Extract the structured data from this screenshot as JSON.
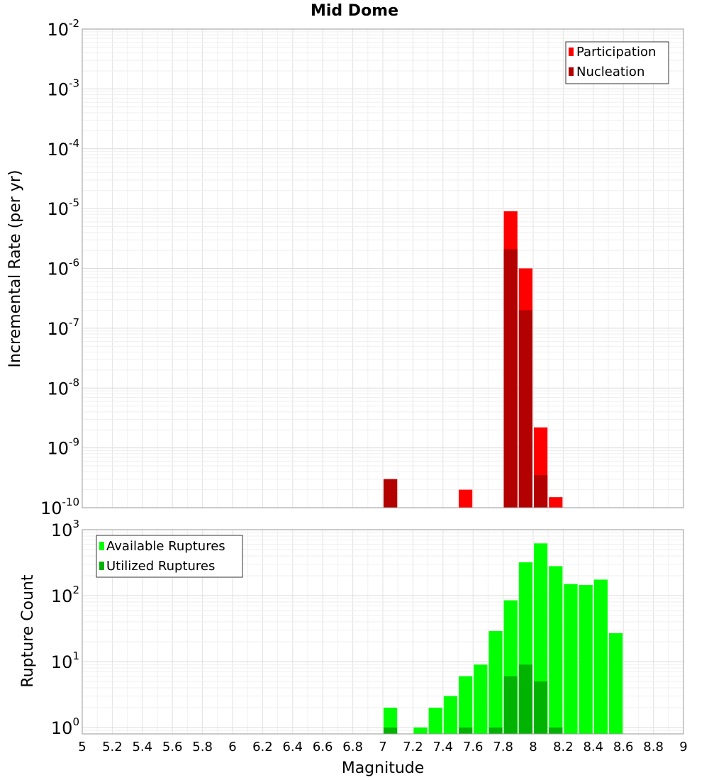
{
  "chart_data": [
    {
      "type": "bar",
      "title": "Mid Dome",
      "ylabel": "Incremental Rate (per yr)",
      "xlabel": "",
      "yscale": "log",
      "ylim": [
        1e-10,
        0.01
      ],
      "xlim": [
        5,
        9
      ],
      "bin_width": 0.1,
      "y_ticks": [
        "10-10",
        "10-9",
        "10-8",
        "10-7",
        "10-6",
        "10-5",
        "10-4",
        "10-3",
        "10-2"
      ],
      "grid": true,
      "legend_position": "top-right",
      "series": [
        {
          "name": "Participation",
          "color": "#ff0000",
          "x": [
            7.05,
            7.55,
            7.85,
            7.95,
            8.05,
            8.15
          ],
          "values": [
            3e-10,
            2e-10,
            9e-06,
            1e-06,
            2.2e-09,
            1.5e-10
          ]
        },
        {
          "name": "Nucleation",
          "color": "#b30000",
          "x": [
            7.05,
            7.85,
            7.95,
            8.05
          ],
          "values": [
            3e-10,
            2.1e-06,
            2e-07,
            3.5e-10
          ]
        }
      ]
    },
    {
      "type": "bar",
      "title": "",
      "ylabel": "Rupture Count",
      "xlabel": "Magnitude",
      "yscale": "log",
      "ylim": [
        0.8,
        1000
      ],
      "xlim": [
        5,
        9
      ],
      "bin_width": 0.1,
      "y_ticks": [
        "100",
        "101",
        "102",
        "103"
      ],
      "x_ticks": [
        "5",
        "5.2",
        "5.4",
        "5.6",
        "5.8",
        "6",
        "6.2",
        "6.4",
        "6.6",
        "6.8",
        "7",
        "7.2",
        "7.4",
        "7.6",
        "7.8",
        "8",
        "8.2",
        "8.4",
        "8.6",
        "8.8",
        "9"
      ],
      "grid": true,
      "legend_position": "top-left",
      "series": [
        {
          "name": "Available Ruptures",
          "color": "#00ff00",
          "x": [
            7.05,
            7.25,
            7.35,
            7.45,
            7.55,
            7.65,
            7.75,
            7.85,
            7.95,
            8.05,
            8.15,
            8.25,
            8.35,
            8.45,
            8.55
          ],
          "values": [
            2,
            1,
            2,
            3,
            6,
            9,
            29,
            85,
            320,
            620,
            280,
            150,
            145,
            175,
            27
          ]
        },
        {
          "name": "Utilized Ruptures",
          "color": "#00b300",
          "x": [
            7.05,
            7.55,
            7.75,
            7.85,
            7.95,
            8.05,
            8.15
          ],
          "values": [
            1,
            1,
            1,
            6,
            9,
            5,
            1
          ]
        }
      ]
    }
  ]
}
